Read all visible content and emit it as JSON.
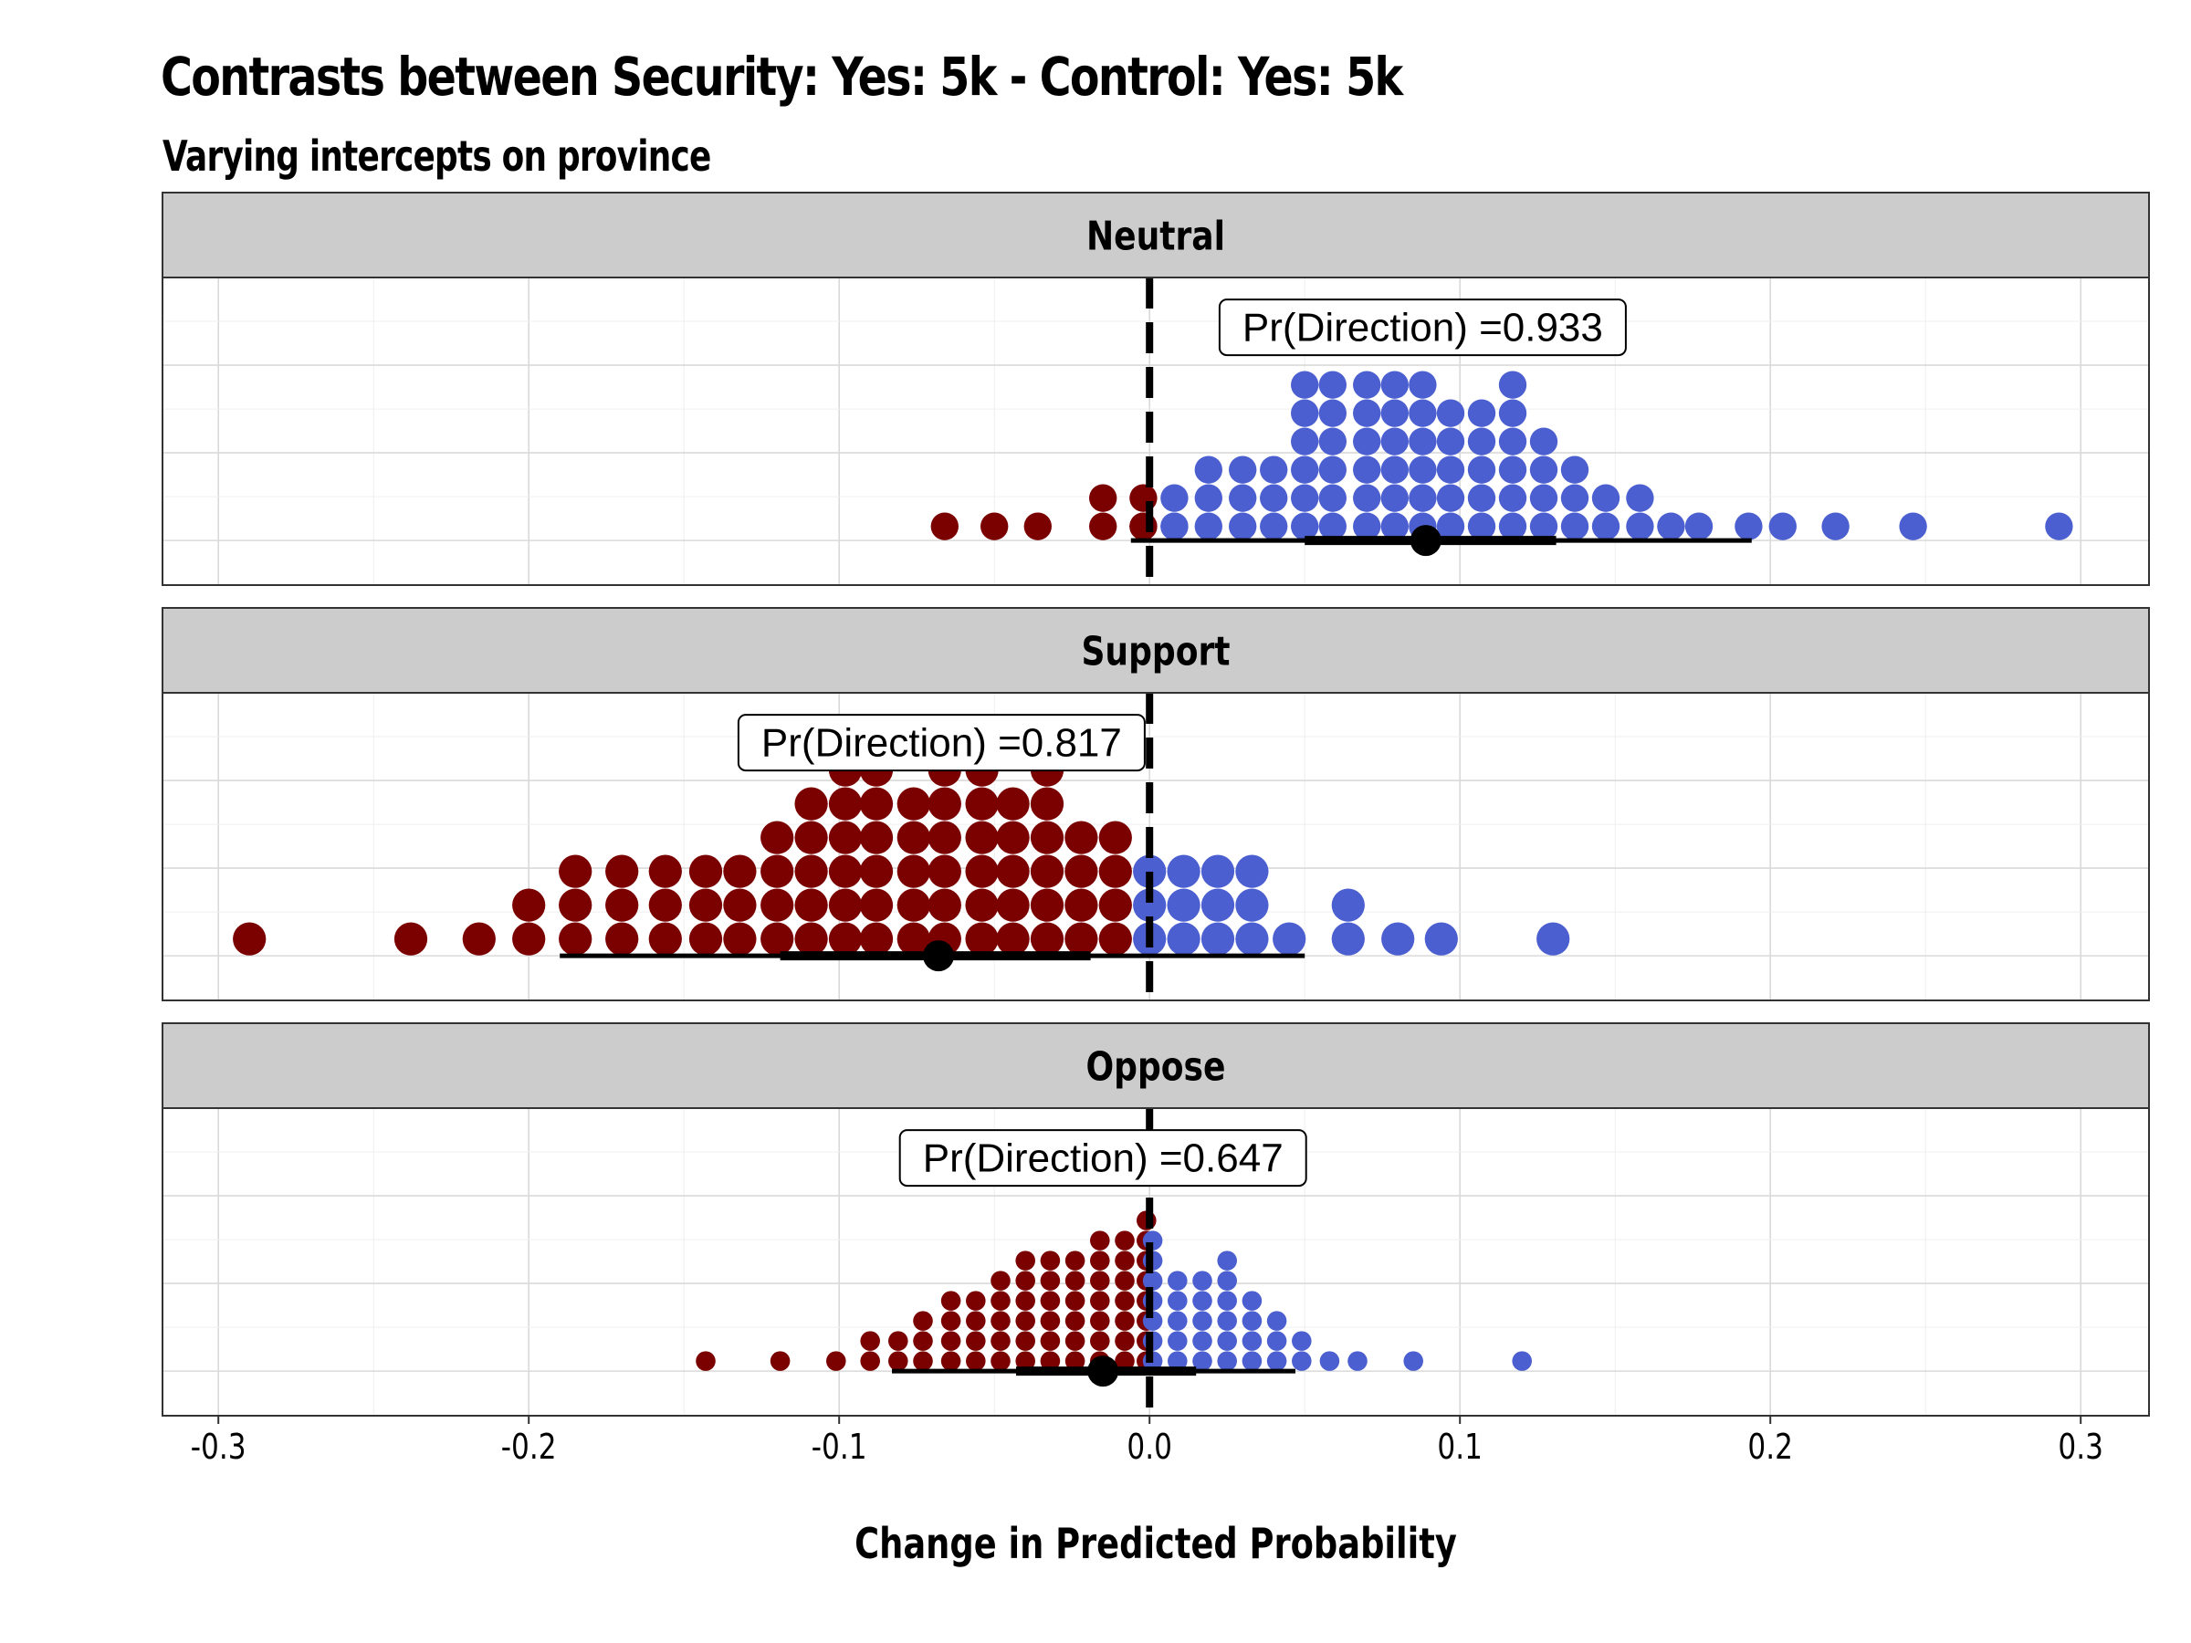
{
  "title": "Contrasts between Security: Yes: 5k - Control: Yes: 5k",
  "subtitle": "Varying intercepts on province",
  "chart_data": {
    "type": "dotplot",
    "xlabel": "Change in Predicted Probability",
    "xlim": [
      -0.318,
      0.322
    ],
    "x_ticks": [
      -0.3,
      -0.2,
      -0.1,
      0.0,
      0.1,
      0.2,
      0.3
    ],
    "x_tick_labels": [
      "-0.3",
      "-0.2",
      "-0.1",
      "0.0",
      "0.1",
      "0.2",
      "0.3"
    ],
    "reference_line_x": 0,
    "colors": {
      "negative": "#7B0000",
      "positive": "#4C5FD0",
      "strip": "#CCCCCC",
      "grid": "#D9D9D9"
    },
    "panels": [
      {
        "label": "Neutral",
        "annotation": "Pr(Direction) =0.933",
        "annotation_x": 0.088,
        "point_estimate": 0.089,
        "interval_inner": [
          0.05,
          0.131
        ],
        "interval_outer": [
          -0.006,
          0.194
        ],
        "dot_counts_by_x": [
          [
            -0.066,
            1
          ],
          [
            -0.05,
            1
          ],
          [
            -0.036,
            1
          ],
          [
            -0.015,
            2
          ],
          [
            -0.002,
            2
          ],
          [
            -0.002,
            1
          ],
          [
            0.008,
            2
          ],
          [
            0.008,
            1
          ],
          [
            0.019,
            3
          ],
          [
            0.03,
            3
          ],
          [
            0.04,
            3
          ],
          [
            0.05,
            6
          ],
          [
            0.059,
            6
          ],
          [
            0.07,
            6
          ],
          [
            0.079,
            6
          ],
          [
            0.088,
            6
          ],
          [
            0.097,
            5
          ],
          [
            0.107,
            5
          ],
          [
            0.117,
            6
          ],
          [
            0.127,
            4
          ],
          [
            0.137,
            3
          ],
          [
            0.147,
            2
          ],
          [
            0.158,
            2
          ],
          [
            0.168,
            1
          ],
          [
            0.177,
            1
          ],
          [
            0.193,
            1
          ],
          [
            0.204,
            1
          ],
          [
            0.221,
            1
          ],
          [
            0.246,
            1
          ],
          [
            0.293,
            1
          ]
        ]
      },
      {
        "label": "Support",
        "annotation": "Pr(Direction) =0.817",
        "annotation_x": -0.067,
        "point_estimate": -0.068,
        "interval_inner": [
          -0.119,
          -0.019
        ],
        "interval_outer": [
          -0.19,
          0.05
        ],
        "dot_counts_by_x": [
          [
            -0.29,
            1
          ],
          [
            -0.238,
            1
          ],
          [
            -0.216,
            1
          ],
          [
            -0.2,
            2
          ],
          [
            -0.185,
            3
          ],
          [
            -0.17,
            3
          ],
          [
            -0.156,
            3
          ],
          [
            -0.143,
            3
          ],
          [
            -0.132,
            3
          ],
          [
            -0.12,
            4
          ],
          [
            -0.109,
            5
          ],
          [
            -0.098,
            6
          ],
          [
            -0.088,
            6
          ],
          [
            -0.076,
            5
          ],
          [
            -0.066,
            6
          ],
          [
            -0.054,
            6
          ],
          [
            -0.044,
            5
          ],
          [
            -0.033,
            6
          ],
          [
            -0.022,
            4
          ],
          [
            -0.011,
            4
          ],
          [
            0.0,
            3
          ],
          [
            0.011,
            3
          ],
          [
            0.022,
            3
          ],
          [
            0.033,
            3
          ],
          [
            0.045,
            1
          ],
          [
            0.064,
            2
          ],
          [
            0.08,
            1
          ],
          [
            0.094,
            1
          ],
          [
            0.13,
            1
          ]
        ]
      },
      {
        "label": "Oppose",
        "annotation": "Pr(Direction) =0.647",
        "annotation_x": -0.015,
        "point_estimate": -0.015,
        "interval_inner": [
          -0.043,
          0.015
        ],
        "interval_outer": [
          -0.083,
          0.047
        ],
        "dot_counts_by_x": [
          [
            -0.143,
            1
          ],
          [
            -0.119,
            1
          ],
          [
            -0.101,
            1
          ],
          [
            -0.09,
            2
          ],
          [
            -0.081,
            2
          ],
          [
            -0.073,
            3
          ],
          [
            -0.064,
            4
          ],
          [
            -0.056,
            4
          ],
          [
            -0.048,
            5
          ],
          [
            -0.04,
            6
          ],
          [
            -0.032,
            6
          ],
          [
            -0.024,
            6
          ],
          [
            -0.016,
            7
          ],
          [
            -0.008,
            7
          ],
          [
            -0.001,
            8
          ],
          [
            0.001,
            7
          ],
          [
            0.009,
            5
          ],
          [
            0.017,
            5
          ],
          [
            0.025,
            6
          ],
          [
            0.033,
            4
          ],
          [
            0.041,
            3
          ],
          [
            0.049,
            2
          ],
          [
            0.058,
            1
          ],
          [
            0.067,
            1
          ],
          [
            0.085,
            1
          ],
          [
            0.12,
            1
          ]
        ]
      }
    ]
  }
}
